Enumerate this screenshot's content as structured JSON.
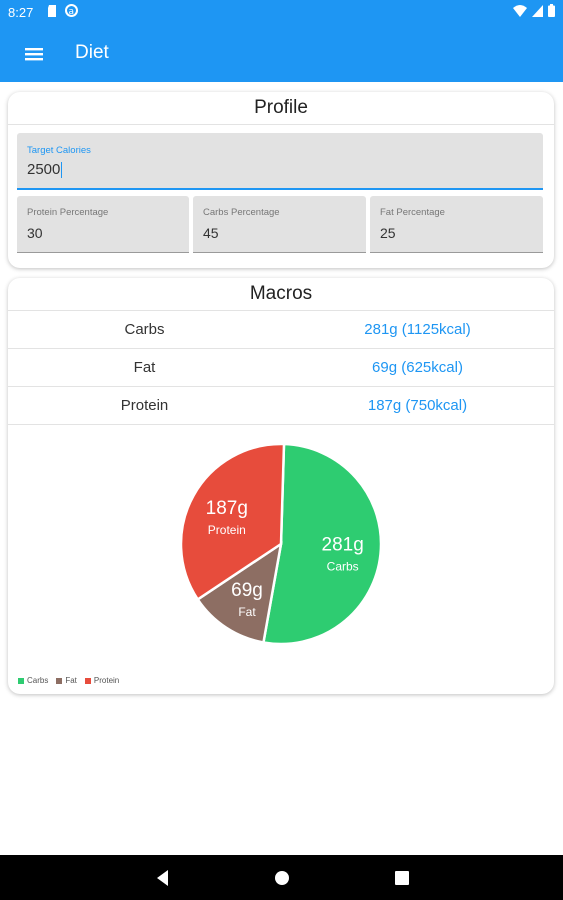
{
  "status_bar": {
    "time": "8:27",
    "icons": [
      "sd-card-icon",
      "sync-icon",
      "wifi-icon",
      "signal-icon",
      "battery-icon"
    ]
  },
  "app_bar": {
    "title": "Diet",
    "menu_icon": "menu-icon"
  },
  "profile": {
    "title": "Profile",
    "target_calories": {
      "label": "Target Calories",
      "value": "2500"
    },
    "protein_percentage": {
      "label": "Protein Percentage",
      "value": "30"
    },
    "carbs_percentage": {
      "label": "Carbs Percentage",
      "value": "45"
    },
    "fat_percentage": {
      "label": "Fat Percentage",
      "value": "25"
    }
  },
  "macros": {
    "title": "Macros",
    "rows": [
      {
        "name": "Carbs",
        "value": "281g (1125kcal)"
      },
      {
        "name": "Fat",
        "value": "69g (625kcal)"
      },
      {
        "name": "Protein",
        "value": "187g (750kcal)"
      }
    ]
  },
  "colors": {
    "accent": "#1e96f3",
    "carbs": "#2ecc71",
    "fat": "#8d6e63",
    "protein": "#e74c3c"
  },
  "chart_data": {
    "type": "pie",
    "series": [
      {
        "name": "Carbs",
        "value": 281,
        "label": "281g",
        "color": "#2ecc71"
      },
      {
        "name": "Fat",
        "value": 69,
        "label": "69g",
        "color": "#8d6e63"
      },
      {
        "name": "Protein",
        "value": 187,
        "label": "187g",
        "color": "#e74c3c"
      }
    ],
    "legend": [
      "Carbs",
      "Fat",
      "Protein"
    ],
    "legend_placement": "bottom-left"
  },
  "nav_bar": {
    "icons": [
      "back-icon",
      "home-icon",
      "recents-icon"
    ]
  }
}
